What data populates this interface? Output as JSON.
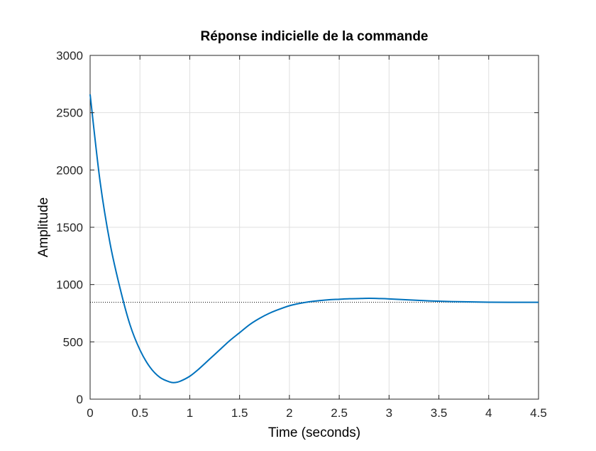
{
  "chart_data": {
    "type": "line",
    "title": "Réponse indicielle de la commande",
    "xlabel": "Time (seconds)",
    "ylabel": "Amplitude",
    "xlim": [
      0,
      4.5
    ],
    "ylim": [
      0,
      3000
    ],
    "xticks": [
      0,
      0.5,
      1,
      1.5,
      2,
      2.5,
      3,
      3.5,
      4,
      4.5
    ],
    "xtick_labels": [
      "0",
      "0.5",
      "1",
      "1.5",
      "2",
      "2.5",
      "3",
      "3.5",
      "4",
      "4.5"
    ],
    "yticks": [
      0,
      500,
      1000,
      1500,
      2000,
      2500,
      3000
    ],
    "ytick_labels": [
      "0",
      "500",
      "1000",
      "1500",
      "2000",
      "2500",
      "3000"
    ],
    "grid": true,
    "steady_state": 845,
    "series": [
      {
        "color": "#0072BD",
        "x": [
          0,
          0.1,
          0.2,
          0.3,
          0.4,
          0.5,
          0.6,
          0.7,
          0.8,
          0.85,
          0.9,
          1.0,
          1.1,
          1.2,
          1.3,
          1.4,
          1.5,
          1.6,
          1.7,
          1.8,
          1.9,
          2.0,
          2.1,
          2.2,
          2.3,
          2.4,
          2.5,
          2.6,
          2.7,
          2.8,
          2.9,
          3.0,
          3.2,
          3.4,
          3.6,
          3.8,
          4.0,
          4.2,
          4.4,
          4.5
        ],
        "y": [
          2660,
          1900,
          1360,
          970,
          650,
          430,
          280,
          190,
          150,
          145,
          155,
          200,
          270,
          350,
          430,
          510,
          580,
          650,
          705,
          750,
          785,
          815,
          835,
          850,
          860,
          868,
          872,
          876,
          878,
          880,
          878,
          875,
          866,
          858,
          852,
          849,
          846,
          845,
          845,
          845
        ]
      }
    ]
  }
}
